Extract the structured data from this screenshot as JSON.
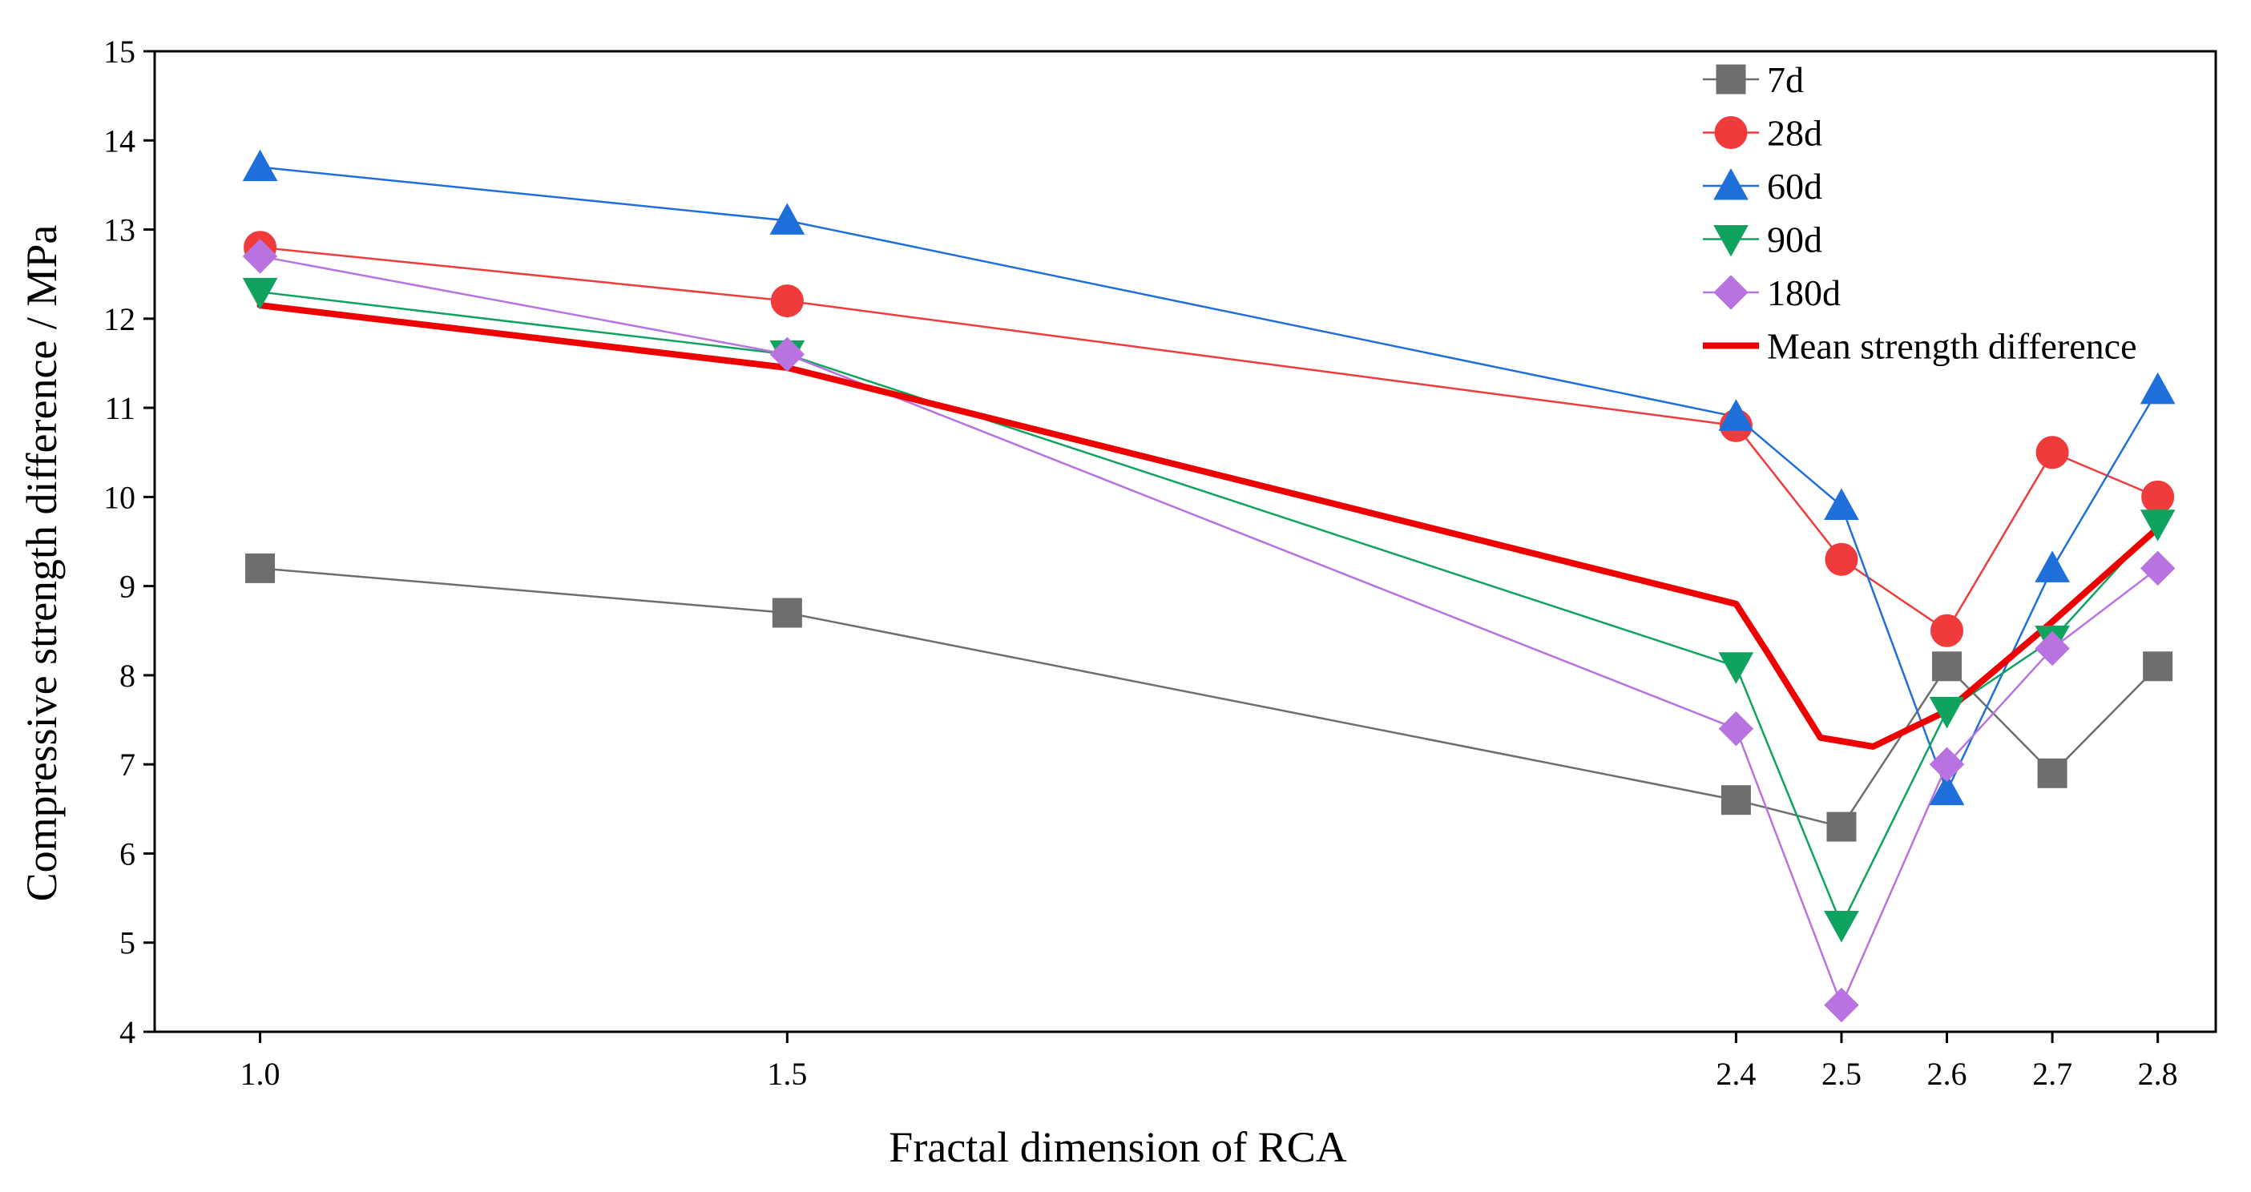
{
  "chart_data": {
    "type": "line",
    "title": "",
    "xlabel": "Fractal dimension of RCA",
    "ylabel": "Compressive strength difference / MPa",
    "x": [
      1.0,
      1.5,
      2.4,
      2.5,
      2.6,
      2.7,
      2.8
    ],
    "x_tick_labels": [
      "1.0",
      "1.5",
      "2.4",
      "2.5",
      "2.6",
      "2.7",
      "2.8"
    ],
    "xlim": [
      0.9,
      2.855
    ],
    "ylim": [
      4,
      15
    ],
    "y_ticks": [
      4,
      5,
      6,
      7,
      8,
      9,
      10,
      11,
      12,
      13,
      14,
      15
    ],
    "y_tick_labels": [
      "4",
      "5",
      "6",
      "7",
      "8",
      "9",
      "10",
      "11",
      "12",
      "13",
      "14",
      "15"
    ],
    "legend_position": "top-right",
    "series": [
      {
        "name": "7d",
        "values": [
          9.2,
          8.7,
          6.6,
          6.3,
          8.1,
          6.9,
          8.1
        ],
        "color": "#6e6e6e",
        "marker": "square"
      },
      {
        "name": "28d",
        "values": [
          12.8,
          12.2,
          10.8,
          9.3,
          8.5,
          10.5,
          10.0
        ],
        "color": "#ef3b3b",
        "marker": "circle"
      },
      {
        "name": "60d",
        "values": [
          13.7,
          13.1,
          10.9,
          9.9,
          6.7,
          9.2,
          11.2
        ],
        "color": "#1f6fdb",
        "marker": "triangle-up"
      },
      {
        "name": "90d",
        "values": [
          12.3,
          11.6,
          8.1,
          5.2,
          7.6,
          8.4,
          9.7
        ],
        "color": "#10a35f",
        "marker": "triangle-down"
      },
      {
        "name": "180d",
        "values": [
          12.7,
          11.6,
          7.4,
          4.3,
          7.0,
          8.3,
          9.2
        ],
        "color": "#b873e0",
        "marker": "diamond"
      }
    ],
    "mean_series": {
      "name": "Mean strength difference",
      "color": "#ee0000",
      "points": [
        [
          1.0,
          12.15
        ],
        [
          1.5,
          11.45
        ],
        [
          2.4,
          8.8
        ],
        [
          2.43,
          8.25
        ],
        [
          2.48,
          7.3
        ],
        [
          2.53,
          7.2
        ],
        [
          2.6,
          7.6
        ],
        [
          2.7,
          8.6
        ],
        [
          2.8,
          9.65
        ]
      ]
    }
  }
}
